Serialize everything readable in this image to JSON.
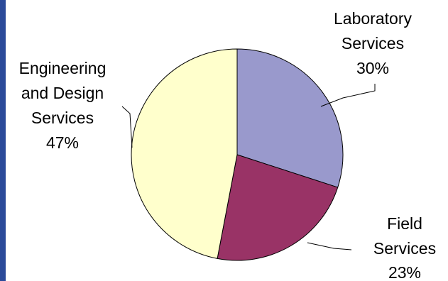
{
  "chart_data": {
    "type": "pie",
    "slices": [
      {
        "name_lines": [
          "Laboratory",
          "Services"
        ],
        "percent_label": "30%",
        "value": 30,
        "color": "#9999cc"
      },
      {
        "name_lines": [
          "Field",
          "Services"
        ],
        "percent_label": "23%",
        "value": 23,
        "color": "#993366"
      },
      {
        "name_lines": [
          "Engineering",
          "and Design",
          "Services"
        ],
        "percent_label": "47%",
        "value": 47,
        "color": "#ffffcc"
      }
    ],
    "start_angle_deg": 0,
    "direction": "clockwise",
    "legend": "none"
  },
  "colors": {
    "slide_accent_bar": "#2b4a9a",
    "slice_outline": "#000000"
  }
}
